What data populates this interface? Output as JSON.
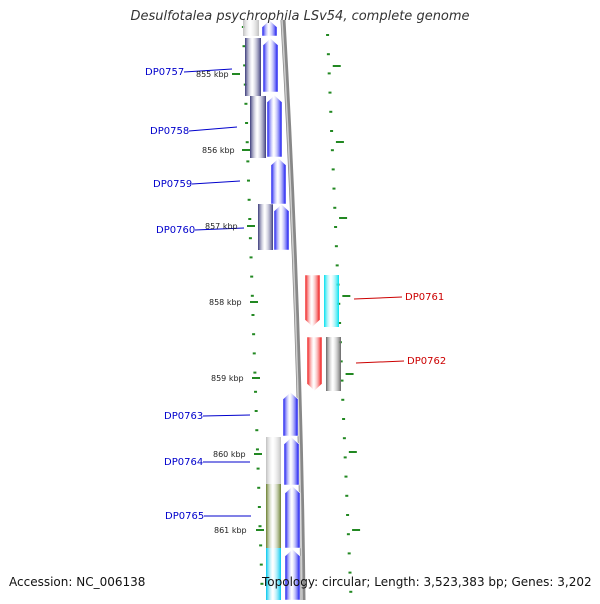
{
  "title": "Desulfotalea psychrophila LSv54, complete genome",
  "footer": {
    "accession": "Accession: NC_006138",
    "summary": "Topology: circular; Length: 3,523,383 bp; Genes: 3,202"
  },
  "colors": {
    "forward_gene": "#0000ee",
    "reverse_gene_red": "#ee0000",
    "reverse_gene_cyan": "#00e0ee",
    "reverse_gene_grey": "#666666",
    "cog_purple": "#3a3a7a",
    "cog_light_grey": "#c0c0c0",
    "cog_olive": "#6b8030",
    "cog_cyan": "#00c8ee",
    "backbone": "#888888",
    "tick": "#228822",
    "label_forward": "#0000cc",
    "label_reverse": "#cc0000"
  },
  "scale_labels": [
    {
      "label": "855 kbp",
      "kbp": 855
    },
    {
      "label": "856 kbp",
      "kbp": 856
    },
    {
      "label": "857 kbp",
      "kbp": 857
    },
    {
      "label": "858 kbp",
      "kbp": 858
    },
    {
      "label": "859 kbp",
      "kbp": 859
    },
    {
      "label": "860 kbp",
      "kbp": 860
    },
    {
      "label": "861 kbp",
      "kbp": 861
    }
  ],
  "genes_forward": [
    {
      "label": "DP0757"
    },
    {
      "label": "DP0758"
    },
    {
      "label": "DP0759"
    },
    {
      "label": "DP0760"
    },
    {
      "label": "DP0763"
    },
    {
      "label": "DP0764"
    },
    {
      "label": "DP0765"
    }
  ],
  "genes_reverse": [
    {
      "label": "DP0761"
    },
    {
      "label": "DP0762"
    }
  ]
}
